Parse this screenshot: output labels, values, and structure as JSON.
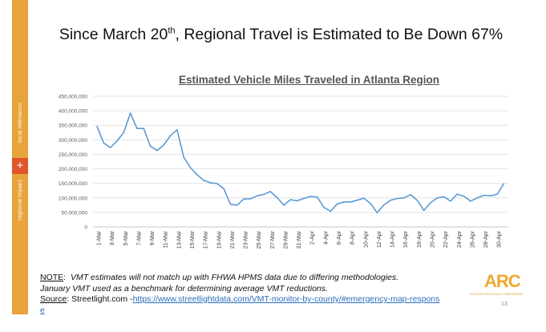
{
  "sidebar": {
    "top_label": "local relevance",
    "bottom_label": "regional impact",
    "plus": "+",
    "color": "#e8a33a",
    "plus_color": "#e0542c"
  },
  "slide_title": {
    "before": "Since March 20",
    "sup": "th",
    "after": ", Regional Travel is Estimated to Be Down 67%"
  },
  "chart_data": {
    "type": "line",
    "title": "Estimated Vehicle Miles Traveled in Atlanta Region",
    "xlabel": "",
    "ylabel": "",
    "ylim": [
      0,
      450000000
    ],
    "yticks": [
      0,
      50000000,
      100000000,
      150000000,
      200000000,
      250000000,
      300000000,
      350000000,
      400000000,
      450000000
    ],
    "ytick_labels": [
      "0",
      "50,000,000",
      "100,000,000",
      "150,000,000",
      "200,000,000",
      "250,000,000",
      "300,000,000",
      "350,000,000",
      "400,000,000",
      "450,000,000"
    ],
    "xtick_labels": [
      "1-Mar",
      "3-Mar",
      "5-Mar",
      "7-Mar",
      "9-Mar",
      "11-Mar",
      "13-Mar",
      "15-Mar",
      "17-Mar",
      "19-Mar",
      "21-Mar",
      "23-Mar",
      "25-Mar",
      "27-Mar",
      "29-Mar",
      "31-Mar",
      "2-Apr",
      "4-Apr",
      "6-Apr",
      "8-Apr",
      "10-Apr",
      "12-Apr",
      "14-Apr",
      "16-Apr",
      "18-Apr",
      "20-Apr",
      "22-Apr",
      "24-Apr",
      "26-Apr",
      "28-Apr",
      "30-Apr"
    ],
    "grid": true,
    "line_color": "#5b9bd5",
    "series": [
      {
        "values": [
          346000000,
          289000000,
          273000000,
          296000000,
          325000000,
          392000000,
          339000000,
          339000000,
          278000000,
          263000000,
          282000000,
          314000000,
          335000000,
          240000000,
          204000000,
          180000000,
          160000000,
          152000000,
          149000000,
          132000000,
          78000000,
          75000000,
          96000000,
          97000000,
          107000000,
          112000000,
          122000000,
          101000000,
          75000000,
          94000000,
          90000000,
          98000000,
          105000000,
          103000000,
          68000000,
          54000000,
          79000000,
          86000000,
          86000000,
          92000000,
          99000000,
          81000000,
          49000000,
          76000000,
          92000000,
          98000000,
          100000000,
          111000000,
          92000000,
          57000000,
          83000000,
          100000000,
          104000000,
          89000000,
          113000000,
          106000000,
          89000000,
          100000000,
          109000000,
          107000000,
          113000000,
          149000000
        ]
      }
    ]
  },
  "note": {
    "label": "NOTE",
    "line1": "VMT estimates will not match up with FHWA HPMS data due to differing methodologies.",
    "line2": "January VMT used as a benchmark for determining average VMT reductions.",
    "source_label": "Source",
    "source_text": ": Streetlight.com -",
    "link": "https://www.streetlightdata.com/VMT-monitor-by-county/#emergency-map-response"
  },
  "logo": {
    "text": "ARC",
    "subtitle": "ATLANTA REGIONAL COMMISSION"
  },
  "page_number": "13"
}
